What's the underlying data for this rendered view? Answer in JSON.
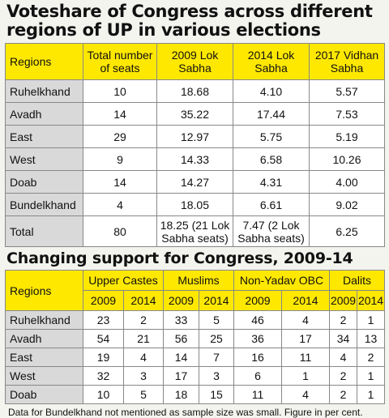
{
  "title1": "Voteshare of Congress across different regions of UP in various elections",
  "table1": {
    "headers": [
      "Regions",
      "Total number of seats",
      "2009 Lok Sabha",
      "2014 Lok Sabha",
      "2017 Vidhan Sabha"
    ],
    "rows": [
      [
        "Ruhelkhand",
        "10",
        "18.68",
        "4.10",
        "5.57"
      ],
      [
        "Avadh",
        "14",
        "35.22",
        "17.44",
        "7.53"
      ],
      [
        "East",
        "29",
        "12.97",
        "5.75",
        "5.19"
      ],
      [
        "West",
        "9",
        "14.33",
        "6.58",
        "10.26"
      ],
      [
        "Doab",
        "14",
        "14.27",
        "4.31",
        "4.00"
      ],
      [
        "Bundelkhand",
        "4",
        "18.05",
        "6.61",
        "9.02"
      ],
      [
        "Total",
        "80",
        "18.25 (21 Lok Sabha seats)",
        "7.47 (2 Lok Sabha seats)",
        "6.25"
      ]
    ]
  },
  "title2": "Changing support for Congress, 2009-14",
  "table2": {
    "regions_header": "Regions",
    "groups": [
      "Upper Castes",
      "Muslims",
      "Non-Yadav OBC",
      "Dalits"
    ],
    "years": [
      "2009",
      "2014",
      "2009",
      "2014",
      "2009",
      "2014",
      "2009",
      "2014"
    ],
    "rows": [
      [
        "Ruhelkhand",
        "23",
        "2",
        "33",
        "5",
        "46",
        "4",
        "2",
        "1"
      ],
      [
        "Avadh",
        "54",
        "21",
        "56",
        "25",
        "36",
        "17",
        "34",
        "13"
      ],
      [
        "East",
        "19",
        "4",
        "14",
        "7",
        "16",
        "11",
        "4",
        "2"
      ],
      [
        "West",
        "32",
        "3",
        "17",
        "3",
        "6",
        "1",
        "2",
        "1"
      ],
      [
        "Doab",
        "10",
        "5",
        "18",
        "15",
        "11",
        "4",
        "2",
        "1"
      ]
    ]
  },
  "note": "Data for Bundelkhand not mentioned as sample size was small. Figure in per cent.",
  "colors": {
    "header_yellow": "#ffe800",
    "label_gray": "#d9d9d9",
    "background": "#f4f4ef"
  }
}
